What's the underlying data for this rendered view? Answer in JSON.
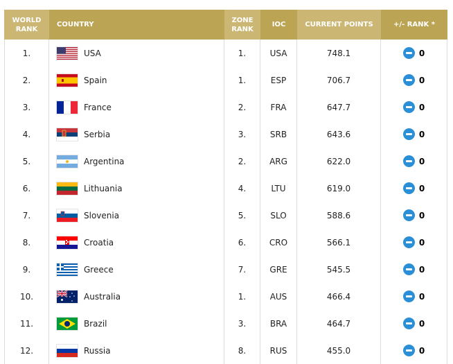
{
  "header": {
    "world_rank": "WORLD RANK",
    "country": "COUNTRY",
    "zone_rank": "ZONE RANK",
    "ioc": "IOC",
    "current_points": "CURRENT POINTS",
    "rank_change": "+/- RANK *"
  },
  "colors": {
    "header_light": "#ccb673",
    "header_dark": "#bca455",
    "change_icon": "#2a8fd6"
  },
  "rows": [
    {
      "world_rank": "1.",
      "country": "USA",
      "flag": "usa-flag-icon",
      "zone_rank": "1.",
      "ioc": "USA",
      "points": "748.1",
      "change": "0"
    },
    {
      "world_rank": "2.",
      "country": "Spain",
      "flag": "spain-flag-icon",
      "zone_rank": "1.",
      "ioc": "ESP",
      "points": "706.7",
      "change": "0"
    },
    {
      "world_rank": "3.",
      "country": "France",
      "flag": "france-flag-icon",
      "zone_rank": "2.",
      "ioc": "FRA",
      "points": "647.7",
      "change": "0"
    },
    {
      "world_rank": "4.",
      "country": "Serbia",
      "flag": "serbia-flag-icon",
      "zone_rank": "3.",
      "ioc": "SRB",
      "points": "643.6",
      "change": "0"
    },
    {
      "world_rank": "5.",
      "country": "Argentina",
      "flag": "argentina-flag-icon",
      "zone_rank": "2.",
      "ioc": "ARG",
      "points": "622.0",
      "change": "0"
    },
    {
      "world_rank": "6.",
      "country": "Lithuania",
      "flag": "lithuania-flag-icon",
      "zone_rank": "4.",
      "ioc": "LTU",
      "points": "619.0",
      "change": "0"
    },
    {
      "world_rank": "7.",
      "country": "Slovenia",
      "flag": "slovenia-flag-icon",
      "zone_rank": "5.",
      "ioc": "SLO",
      "points": "588.6",
      "change": "0"
    },
    {
      "world_rank": "8.",
      "country": "Croatia",
      "flag": "croatia-flag-icon",
      "zone_rank": "6.",
      "ioc": "CRO",
      "points": "566.1",
      "change": "0"
    },
    {
      "world_rank": "9.",
      "country": "Greece",
      "flag": "greece-flag-icon",
      "zone_rank": "7.",
      "ioc": "GRE",
      "points": "545.5",
      "change": "0"
    },
    {
      "world_rank": "10.",
      "country": "Australia",
      "flag": "australia-flag-icon",
      "zone_rank": "1.",
      "ioc": "AUS",
      "points": "466.4",
      "change": "0"
    },
    {
      "world_rank": "11.",
      "country": "Brazil",
      "flag": "brazil-flag-icon",
      "zone_rank": "3.",
      "ioc": "BRA",
      "points": "464.7",
      "change": "0"
    },
    {
      "world_rank": "12.",
      "country": "Russia",
      "flag": "russia-flag-icon",
      "zone_rank": "8.",
      "ioc": "RUS",
      "points": "455.0",
      "change": "0"
    }
  ]
}
